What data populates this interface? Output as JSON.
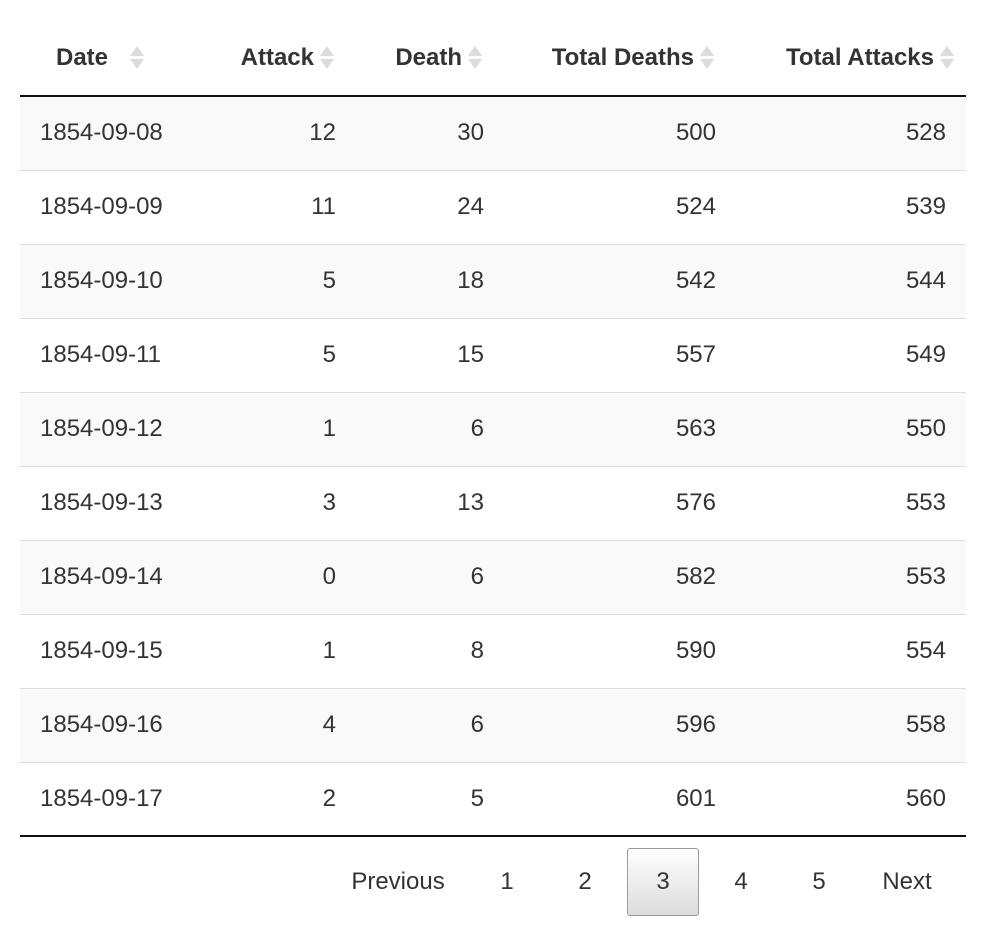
{
  "table": {
    "columns": [
      {
        "key": "date",
        "label": "Date"
      },
      {
        "key": "attack",
        "label": "Attack"
      },
      {
        "key": "death",
        "label": "Death"
      },
      {
        "key": "total_deaths",
        "label": "Total Deaths"
      },
      {
        "key": "total_attacks",
        "label": "Total Attacks"
      }
    ],
    "rows": [
      [
        "1854-09-08",
        "12",
        "30",
        "500",
        "528"
      ],
      [
        "1854-09-09",
        "11",
        "24",
        "524",
        "539"
      ],
      [
        "1854-09-10",
        "5",
        "18",
        "542",
        "544"
      ],
      [
        "1854-09-11",
        "5",
        "15",
        "557",
        "549"
      ],
      [
        "1854-09-12",
        "1",
        "6",
        "563",
        "550"
      ],
      [
        "1854-09-13",
        "3",
        "13",
        "576",
        "553"
      ],
      [
        "1854-09-14",
        "0",
        "6",
        "582",
        "553"
      ],
      [
        "1854-09-15",
        "1",
        "8",
        "590",
        "554"
      ],
      [
        "1854-09-16",
        "4",
        "6",
        "596",
        "558"
      ],
      [
        "1854-09-17",
        "2",
        "5",
        "601",
        "560"
      ]
    ]
  },
  "pagination": {
    "previous_label": "Previous",
    "pages": [
      "1",
      "2",
      "3",
      "4",
      "5"
    ],
    "current_page": "3",
    "next_label": "Next"
  },
  "icons": {
    "sort": "sort-both-icon"
  },
  "colors": {
    "text": "#333333",
    "stripe": "#f9f9f9",
    "row_border": "#dddddd",
    "header_border": "#111111",
    "sort_icon": "#dcdcdc"
  }
}
